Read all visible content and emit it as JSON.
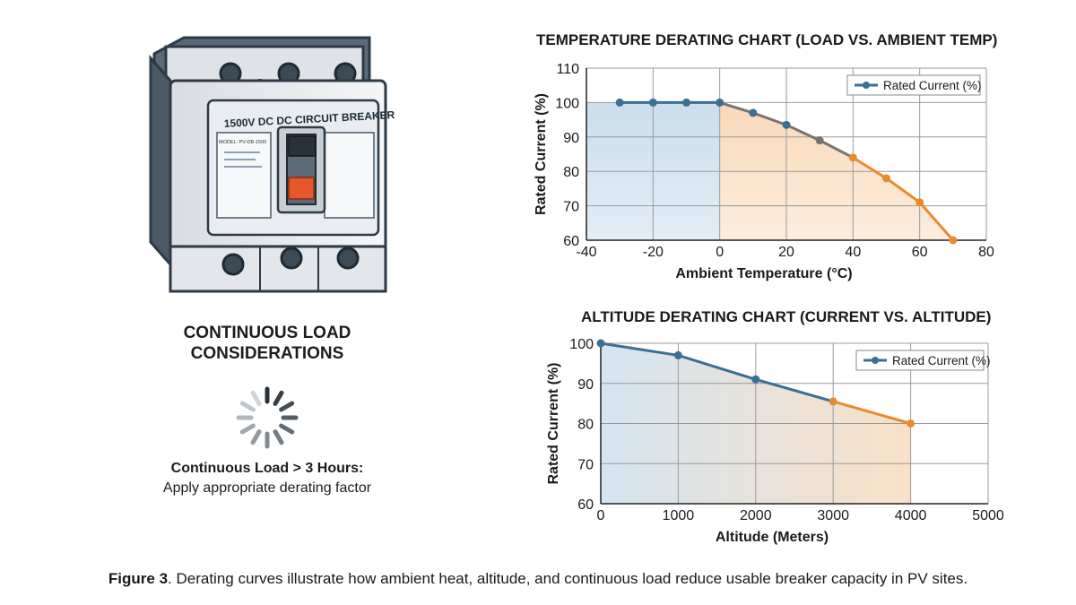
{
  "breaker": {
    "label": "1500V DC DC CIRCUIT BREAKER",
    "model": "MODEL: PV-DB-1500"
  },
  "continuous_load": {
    "title_line1": "CONTINUOUS LOAD",
    "title_line2": "CONSIDERATIONS",
    "rule": "Continuous Load > 3 Hours:",
    "advice": "Apply appropriate derating factor",
    "icon": "loading-spinner-icon"
  },
  "caption": {
    "label": "Figure 3",
    "text": ". Derating curves illustrate how ambient heat, altitude, and continuous load reduce usable breaker capacity in PV sites."
  },
  "colors": {
    "blue_line": "#3a6f94",
    "orange_line": "#e88b2e",
    "blue_fill": "#c7dcec",
    "orange_fill": "#f8d7b5",
    "grid": "#9a9a9a"
  },
  "chart_data": [
    {
      "type": "line",
      "title": "TEMPERATURE DERATING CHART (LOAD VS. AMBIENT TEMP)",
      "xlabel": "Ambient Temperature (°C)",
      "ylabel": "Rated Current (%)",
      "xlim": [
        -40,
        80
      ],
      "ylim": [
        60,
        110
      ],
      "xticks": [
        "-40",
        "-20",
        "0",
        "20",
        "40",
        "60",
        "80"
      ],
      "yticks": [
        "60",
        "70",
        "80",
        "90",
        "100",
        "110"
      ],
      "grid": true,
      "legend_position": "top-right",
      "series": [
        {
          "name": "Rated Current (%)",
          "x": [
            -30,
            -20,
            -10,
            0,
            10,
            20,
            30,
            40,
            50,
            60,
            70
          ],
          "y": [
            100,
            100,
            100,
            100,
            97,
            93.5,
            89,
            84,
            78,
            71,
            60
          ]
        }
      ]
    },
    {
      "type": "line",
      "title": "ALTITUDE DERATING CHART (CURRENT VS. ALTITUDE)",
      "xlabel": "Altitude (Meters)",
      "ylabel": "Rated Current (%)",
      "xlim": [
        0,
        5000
      ],
      "ylim": [
        60,
        100
      ],
      "xticks": [
        "0",
        "1000",
        "2000",
        "3000",
        "4000",
        "5000"
      ],
      "yticks": [
        "60",
        "70",
        "80",
        "90",
        "100"
      ],
      "grid": true,
      "legend_position": "top-right",
      "series": [
        {
          "name": "Rated Current (%)",
          "x": [
            0,
            1000,
            2000,
            3000,
            4000
          ],
          "y": [
            100,
            97,
            91,
            85.5,
            80
          ]
        }
      ]
    }
  ]
}
